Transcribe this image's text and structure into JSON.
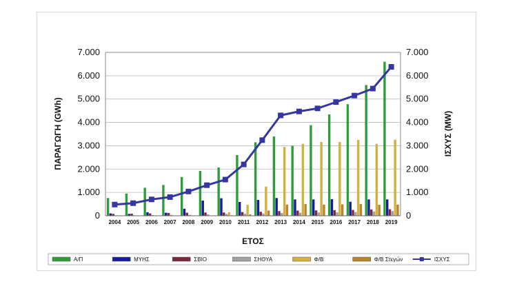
{
  "chart_data": {
    "type": "bar",
    "title": "",
    "xlabel": "ΕΤΟΣ",
    "ylabel": "ΠΑΡΑΓΩΓΗ (GWh)",
    "y2label": "ΙΣΧΥΣ (MW)",
    "ylim": [
      0,
      7000
    ],
    "y2lim": [
      0,
      7000
    ],
    "yticks": [
      "0",
      "1.000",
      "2.000",
      "3.000",
      "4.000",
      "5.000",
      "6.000",
      "7.000"
    ],
    "y2ticks": [
      "0",
      "1.000",
      "2.000",
      "3.000",
      "4.000",
      "5.000",
      "6.000",
      "7.000"
    ],
    "grid": true,
    "legend_position": "bottom",
    "categories": [
      "2004",
      "2005",
      "2006",
      "2007",
      "2008",
      "2009",
      "2010",
      "2011",
      "2012",
      "2013",
      "2014",
      "2015",
      "2016",
      "2017",
      "2018",
      "2019"
    ],
    "series": [
      {
        "name": "Α/Π",
        "type": "bar",
        "color": "#2e9e3a",
        "values": [
          760,
          950,
          1200,
          1320,
          1660,
          1920,
          2070,
          2600,
          3150,
          3400,
          3000,
          3880,
          4340,
          4780,
          5600,
          6600
        ]
      },
      {
        "name": "ΜΥΗΣ",
        "type": "bar",
        "color": "#1a1aa0",
        "values": [
          100,
          80,
          150,
          130,
          300,
          650,
          750,
          590,
          680,
          760,
          700,
          700,
          710,
          600,
          700,
          700
        ]
      },
      {
        "name": "ΣΒΙΟ",
        "type": "bar",
        "color": "#7a2a3a",
        "values": [
          80,
          90,
          100,
          120,
          130,
          140,
          140,
          160,
          170,
          200,
          220,
          230,
          240,
          250,
          270,
          280
        ]
      },
      {
        "name": "ΣΗΘΥΑ",
        "type": "bar",
        "color": "#a0a0a0",
        "values": [
          20,
          20,
          30,
          40,
          40,
          60,
          80,
          90,
          100,
          120,
          130,
          140,
          150,
          160,
          180,
          200
        ]
      },
      {
        "name": "Φ/Β",
        "type": "bar",
        "color": "#d4b040",
        "values": [
          0,
          0,
          0,
          0,
          0,
          10,
          150,
          470,
          1250,
          2950,
          3080,
          3160,
          3160,
          3250,
          3080,
          3260
        ]
      },
      {
        "name": "Φ/Β Στεγών",
        "type": "bar",
        "color": "#b8862a",
        "values": [
          0,
          0,
          0,
          0,
          0,
          0,
          20,
          60,
          220,
          480,
          500,
          480,
          490,
          500,
          470,
          480
        ]
      },
      {
        "name": "ΙΣΧΥΣ",
        "type": "line",
        "axis": "right",
        "color": "#3636a0",
        "values": [
          480,
          540,
          700,
          800,
          1040,
          1310,
          1550,
          2200,
          3240,
          4300,
          4470,
          4600,
          4870,
          5150,
          5450,
          6380
        ]
      }
    ]
  }
}
